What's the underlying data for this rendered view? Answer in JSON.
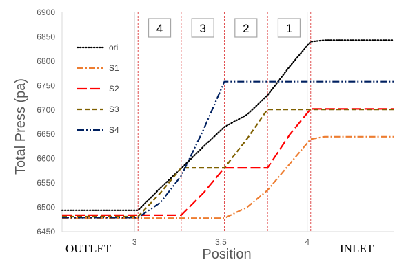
{
  "chart_data": {
    "type": "line",
    "title": "",
    "xlabel": "Position",
    "ylabel": "Total Press (pa)",
    "xlim": [
      2.58,
      4.5
    ],
    "ylim": [
      6450,
      6900
    ],
    "yticks": [
      6450,
      6500,
      6550,
      6600,
      6650,
      6700,
      6750,
      6800,
      6850,
      6900
    ],
    "xticks": [
      3,
      3.5,
      4
    ],
    "xtick_labels": [
      "3",
      "3.5",
      "4"
    ],
    "grid": "vertical",
    "legend": "top-left",
    "end_labels": {
      "left": "OUTLET",
      "right": "INLET"
    },
    "zones": [
      {
        "label": "4",
        "x_start": 3.02,
        "x_end": 3.27
      },
      {
        "label": "3",
        "x_start": 3.27,
        "x_end": 3.52
      },
      {
        "label": "2",
        "x_start": 3.52,
        "x_end": 3.77
      },
      {
        "label": "1",
        "x_start": 3.77,
        "x_end": 4.02
      }
    ],
    "series": [
      {
        "name": "ori",
        "color": "#000000",
        "dash": "dotted",
        "x": [
          2.58,
          3.02,
          3.15,
          3.27,
          3.4,
          3.52,
          3.65,
          3.77,
          3.9,
          4.02,
          4.1,
          4.5
        ],
        "y": [
          6494,
          6494,
          6540,
          6580,
          6625,
          6665,
          6690,
          6730,
          6790,
          6840,
          6843,
          6843
        ]
      },
      {
        "name": "S1",
        "color": "#ED7D31",
        "dash": "dash-dot",
        "x": [
          2.58,
          3.52,
          3.65,
          3.77,
          3.9,
          4.02,
          4.1,
          4.5
        ],
        "y": [
          6478,
          6478,
          6500,
          6535,
          6590,
          6640,
          6645,
          6645
        ]
      },
      {
        "name": "S2",
        "color": "#FF0000",
        "dash": "long-dash",
        "x": [
          2.58,
          3.27,
          3.4,
          3.52,
          3.77,
          3.9,
          4.02,
          4.5
        ],
        "y": [
          6484,
          6484,
          6530,
          6581,
          6581,
          6650,
          6702,
          6702
        ]
      },
      {
        "name": "S3",
        "color": "#7F6000",
        "dash": "dash",
        "x": [
          2.58,
          3.02,
          3.15,
          3.27,
          3.52,
          3.65,
          3.77,
          4.5
        ],
        "y": [
          6481,
          6481,
          6530,
          6581,
          6581,
          6640,
          6701,
          6701
        ]
      },
      {
        "name": "S4",
        "color": "#002060",
        "dash": "dash-dot-dot",
        "x": [
          2.58,
          3.02,
          3.15,
          3.27,
          3.4,
          3.52,
          4.5
        ],
        "y": [
          6479,
          6479,
          6510,
          6565,
          6660,
          6758,
          6758
        ]
      }
    ]
  }
}
